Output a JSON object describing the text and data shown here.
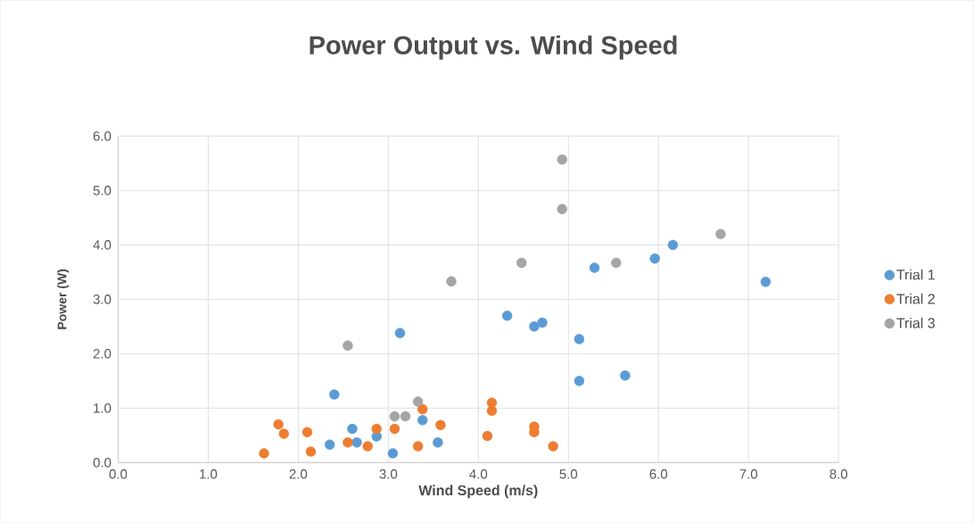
{
  "chart_data": {
    "type": "scatter",
    "title": "Power Output  vs. Wind Speed",
    "xlabel": "Wind Speed (m/s)",
    "ylabel": "Power (W)",
    "xlim": [
      0,
      8
    ],
    "ylim": [
      0,
      6
    ],
    "xticks": [
      {
        "value": 0,
        "label": "0.0"
      },
      {
        "value": 1,
        "label": "1.0"
      },
      {
        "value": 2,
        "label": "2.0"
      },
      {
        "value": 3,
        "label": "3.0"
      },
      {
        "value": 4,
        "label": "4.0"
      },
      {
        "value": 5,
        "label": "5.0"
      },
      {
        "value": 6,
        "label": "6.0"
      },
      {
        "value": 7,
        "label": "7.0"
      },
      {
        "value": 8,
        "label": "8.0"
      }
    ],
    "yticks": [
      {
        "value": 0,
        "label": "0.0"
      },
      {
        "value": 1,
        "label": "1.0"
      },
      {
        "value": 2,
        "label": "2.0"
      },
      {
        "value": 3,
        "label": "3.0"
      },
      {
        "value": 4,
        "label": "4.0"
      },
      {
        "value": 5,
        "label": "5.0"
      },
      {
        "value": 6,
        "label": "6.0"
      }
    ],
    "grid": true,
    "legend": "right",
    "marker": "circle",
    "series": [
      {
        "name": "Trial 1",
        "color": "#5b9bd5",
        "x": [
          2.4,
          2.35,
          2.6,
          2.65,
          2.87,
          3.05,
          3.13,
          3.38,
          3.55,
          4.32,
          4.62,
          4.71,
          5.12,
          5.12,
          5.29,
          5.63,
          5.96,
          6.16,
          7.19
        ],
        "values": [
          1.25,
          0.33,
          0.62,
          0.37,
          0.48,
          0.17,
          2.38,
          0.78,
          0.37,
          2.7,
          2.5,
          2.57,
          2.27,
          1.5,
          3.58,
          1.6,
          3.75,
          4.0,
          3.32
        ]
      },
      {
        "name": "Trial 2",
        "color": "#ed7d31",
        "x": [
          1.62,
          1.78,
          1.84,
          2.1,
          2.14,
          2.55,
          2.77,
          2.87,
          3.07,
          3.33,
          3.38,
          3.58,
          4.1,
          4.15,
          4.15,
          4.62,
          4.62,
          4.83
        ],
        "values": [
          0.17,
          0.7,
          0.53,
          0.56,
          0.2,
          0.37,
          0.3,
          0.62,
          0.62,
          0.3,
          0.98,
          0.69,
          0.49,
          1.1,
          0.95,
          0.66,
          0.56,
          0.3
        ]
      },
      {
        "name": "Trial 3",
        "color": "#a5a5a5",
        "x": [
          2.55,
          3.07,
          3.19,
          3.33,
          3.7,
          4.48,
          4.93,
          4.93,
          5.53,
          6.69
        ],
        "values": [
          2.15,
          0.85,
          0.85,
          1.12,
          3.33,
          3.67,
          5.57,
          4.66,
          3.67,
          4.2
        ]
      }
    ]
  }
}
